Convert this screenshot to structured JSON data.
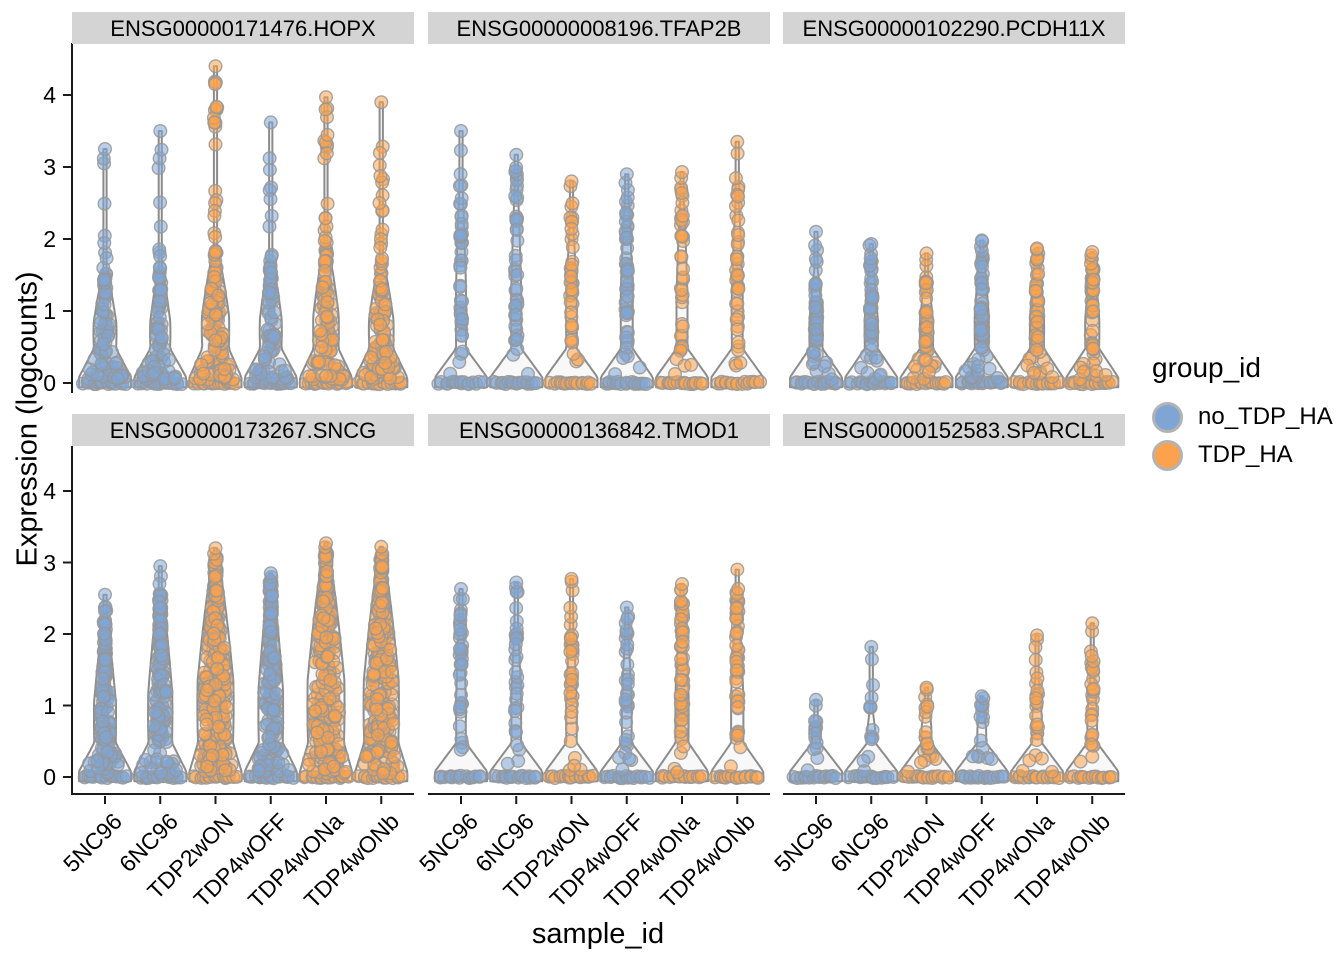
{
  "figure": {
    "y_axis_title": "Expression (logcounts)",
    "x_axis_title": "sample_id",
    "y_ticks": [
      0,
      1,
      2,
      3,
      4
    ],
    "samples": [
      "5NC96",
      "6NC96",
      "TDP2wON",
      "TDP4wOFF",
      "TDP4wONa",
      "TDP4wONb"
    ]
  },
  "legend": {
    "title": "group_id",
    "items": [
      {
        "label": "no_TDP_HA",
        "color": "#7FA5D5"
      },
      {
        "label": "TDP_HA",
        "color": "#FCA24C"
      }
    ]
  },
  "colors": {
    "strip_background": "#D4D4D4",
    "violin_outline": "#8C8C8C",
    "violin_fill": "#F7F7F7",
    "point_stroke": "#969696",
    "axis": "#1a1a1a",
    "point_alpha": 0.55
  },
  "chart_data": {
    "type": "violin_jitter_faceted",
    "xlabel": "sample_id",
    "ylabel": "Expression (logcounts)",
    "ylim": [
      0,
      4.6
    ],
    "x_categories": [
      "5NC96",
      "6NC96",
      "TDP2wON",
      "TDP4wOFF",
      "TDP4wONa",
      "TDP4wONb"
    ],
    "sample_groups": [
      "no_TDP_HA",
      "no_TDP_HA",
      "TDP_HA",
      "no_TDP_HA",
      "TDP_HA",
      "TDP_HA"
    ],
    "legend_position": "right",
    "zeros_per_violin": 16,
    "facets": [
      {
        "title": "ENSG00000171476.HOPX",
        "point_exp": 1.5,
        "violins": [
          {
            "sample": "5NC96",
            "group": "no_TDP_HA",
            "max": 3.25,
            "dense_top": 1.55,
            "width": 0.52,
            "n_points": 78,
            "n_upper": 8
          },
          {
            "sample": "6NC96",
            "group": "no_TDP_HA",
            "max": 3.5,
            "dense_top": 1.6,
            "width": 0.46,
            "n_points": 66,
            "n_upper": 9
          },
          {
            "sample": "TDP2wON",
            "group": "TDP_HA",
            "max": 4.4,
            "dense_top": 1.85,
            "width": 0.62,
            "n_points": 115,
            "n_upper": 20
          },
          {
            "sample": "TDP4wOFF",
            "group": "no_TDP_HA",
            "max": 3.62,
            "dense_top": 1.7,
            "width": 0.5,
            "n_points": 72,
            "n_upper": 9
          },
          {
            "sample": "TDP4wONa",
            "group": "TDP_HA",
            "max": 3.97,
            "dense_top": 1.9,
            "width": 0.58,
            "n_points": 105,
            "n_upper": 18
          },
          {
            "sample": "TDP4wONb",
            "group": "TDP_HA",
            "max": 3.9,
            "dense_top": 1.7,
            "width": 0.56,
            "n_points": 96,
            "n_upper": 16
          }
        ]
      },
      {
        "title": "ENSG00000008196.TFAP2B",
        "point_exp": 0.85,
        "violins": [
          {
            "sample": "5NC96",
            "group": "no_TDP_HA",
            "max": 3.5,
            "dense_top": 2.95,
            "width": 0.23,
            "n_points": 42,
            "n_upper": 1
          },
          {
            "sample": "6NC96",
            "group": "no_TDP_HA",
            "max": 3.17,
            "dense_top": 2.95,
            "width": 0.23,
            "n_points": 42,
            "n_upper": 1
          },
          {
            "sample": "TDP2wON",
            "group": "TDP_HA",
            "max": 2.8,
            "dense_top": 2.45,
            "width": 0.24,
            "n_points": 36,
            "n_upper": 2
          },
          {
            "sample": "TDP4wOFF",
            "group": "no_TDP_HA",
            "max": 2.9,
            "dense_top": 2.85,
            "width": 0.27,
            "n_points": 50,
            "n_upper": 0
          },
          {
            "sample": "TDP4wONa",
            "group": "TDP_HA",
            "max": 2.93,
            "dense_top": 2.8,
            "width": 0.25,
            "n_points": 40,
            "n_upper": 1
          },
          {
            "sample": "TDP4wONb",
            "group": "TDP_HA",
            "max": 3.35,
            "dense_top": 2.75,
            "width": 0.25,
            "n_points": 40,
            "n_upper": 2
          }
        ]
      },
      {
        "title": "ENSG00000102290.PCDH11X",
        "point_exp": 1.1,
        "violins": [
          {
            "sample": "5NC96",
            "group": "no_TDP_HA",
            "max": 2.1,
            "dense_top": 1.65,
            "width": 0.3,
            "n_points": 46,
            "n_upper": 4
          },
          {
            "sample": "6NC96",
            "group": "no_TDP_HA",
            "max": 1.93,
            "dense_top": 1.7,
            "width": 0.3,
            "n_points": 46,
            "n_upper": 3
          },
          {
            "sample": "TDP2wON",
            "group": "TDP_HA",
            "max": 1.8,
            "dense_top": 1.55,
            "width": 0.3,
            "n_points": 52,
            "n_upper": 2
          },
          {
            "sample": "TDP4wOFF",
            "group": "no_TDP_HA",
            "max": 1.98,
            "dense_top": 1.9,
            "width": 0.32,
            "n_points": 58,
            "n_upper": 1
          },
          {
            "sample": "TDP4wONa",
            "group": "TDP_HA",
            "max": 1.87,
            "dense_top": 1.8,
            "width": 0.32,
            "n_points": 56,
            "n_upper": 1
          },
          {
            "sample": "TDP4wONb",
            "group": "TDP_HA",
            "max": 1.82,
            "dense_top": 1.75,
            "width": 0.32,
            "n_points": 56,
            "n_upper": 1
          }
        ]
      },
      {
        "title": "ENSG00000173267.SNCG",
        "point_exp": 1.15,
        "violins": [
          {
            "sample": "5NC96",
            "group": "no_TDP_HA",
            "max": 2.55,
            "dense_top": 2.2,
            "width": 0.5,
            "n_points": 130,
            "n_upper": 4
          },
          {
            "sample": "6NC96",
            "group": "no_TDP_HA",
            "max": 2.95,
            "dense_top": 2.6,
            "width": 0.55,
            "n_points": 160,
            "n_upper": 2
          },
          {
            "sample": "TDP2wON",
            "group": "TDP_HA",
            "max": 3.2,
            "dense_top": 3.08,
            "width": 0.82,
            "n_points": 280,
            "n_upper": 1
          },
          {
            "sample": "TDP4wOFF",
            "group": "no_TDP_HA",
            "max": 2.85,
            "dense_top": 2.75,
            "width": 0.56,
            "n_points": 180,
            "n_upper": 1
          },
          {
            "sample": "TDP4wONa",
            "group": "TDP_HA",
            "max": 3.27,
            "dense_top": 3.15,
            "width": 0.84,
            "n_points": 285,
            "n_upper": 1
          },
          {
            "sample": "TDP4wONb",
            "group": "TDP_HA",
            "max": 3.22,
            "dense_top": 3.1,
            "width": 0.8,
            "n_points": 265,
            "n_upper": 1
          }
        ]
      },
      {
        "title": "ENSG00000136842.TMOD1",
        "point_exp": 0.85,
        "violins": [
          {
            "sample": "5NC96",
            "group": "no_TDP_HA",
            "max": 2.63,
            "dense_top": 2.45,
            "width": 0.22,
            "n_points": 34,
            "n_upper": 2
          },
          {
            "sample": "6NC96",
            "group": "no_TDP_HA",
            "max": 2.72,
            "dense_top": 2.4,
            "width": 0.22,
            "n_points": 30,
            "n_upper": 3
          },
          {
            "sample": "TDP2wON",
            "group": "TDP_HA",
            "max": 2.77,
            "dense_top": 2.3,
            "width": 0.24,
            "n_points": 32,
            "n_upper": 3
          },
          {
            "sample": "TDP4wOFF",
            "group": "no_TDP_HA",
            "max": 2.37,
            "dense_top": 2.2,
            "width": 0.22,
            "n_points": 30,
            "n_upper": 2
          },
          {
            "sample": "TDP4wONa",
            "group": "TDP_HA",
            "max": 2.7,
            "dense_top": 2.55,
            "width": 0.3,
            "n_points": 56,
            "n_upper": 2
          },
          {
            "sample": "TDP4wONb",
            "group": "TDP_HA",
            "max": 2.9,
            "dense_top": 2.5,
            "width": 0.28,
            "n_points": 50,
            "n_upper": 3
          }
        ]
      },
      {
        "title": "ENSG00000152583.SPARCL1",
        "point_exp": 1.0,
        "violins": [
          {
            "sample": "5NC96",
            "group": "no_TDP_HA",
            "max": 1.08,
            "dense_top": 0.95,
            "width": 0.18,
            "n_points": 12,
            "n_upper": 1
          },
          {
            "sample": "6NC96",
            "group": "no_TDP_HA",
            "max": 1.82,
            "dense_top": 1.0,
            "width": 0.18,
            "n_points": 10,
            "n_upper": 3
          },
          {
            "sample": "TDP2wON",
            "group": "TDP_HA",
            "max": 1.25,
            "dense_top": 1.15,
            "width": 0.22,
            "n_points": 20,
            "n_upper": 1
          },
          {
            "sample": "TDP4wOFF",
            "group": "no_TDP_HA",
            "max": 1.13,
            "dense_top": 1.05,
            "width": 0.2,
            "n_points": 14,
            "n_upper": 1
          },
          {
            "sample": "TDP4wONa",
            "group": "TDP_HA",
            "max": 1.98,
            "dense_top": 1.5,
            "width": 0.22,
            "n_points": 22,
            "n_upper": 3
          },
          {
            "sample": "TDP4wONb",
            "group": "TDP_HA",
            "max": 2.15,
            "dense_top": 1.6,
            "width": 0.22,
            "n_points": 24,
            "n_upper": 4
          }
        ]
      }
    ]
  }
}
